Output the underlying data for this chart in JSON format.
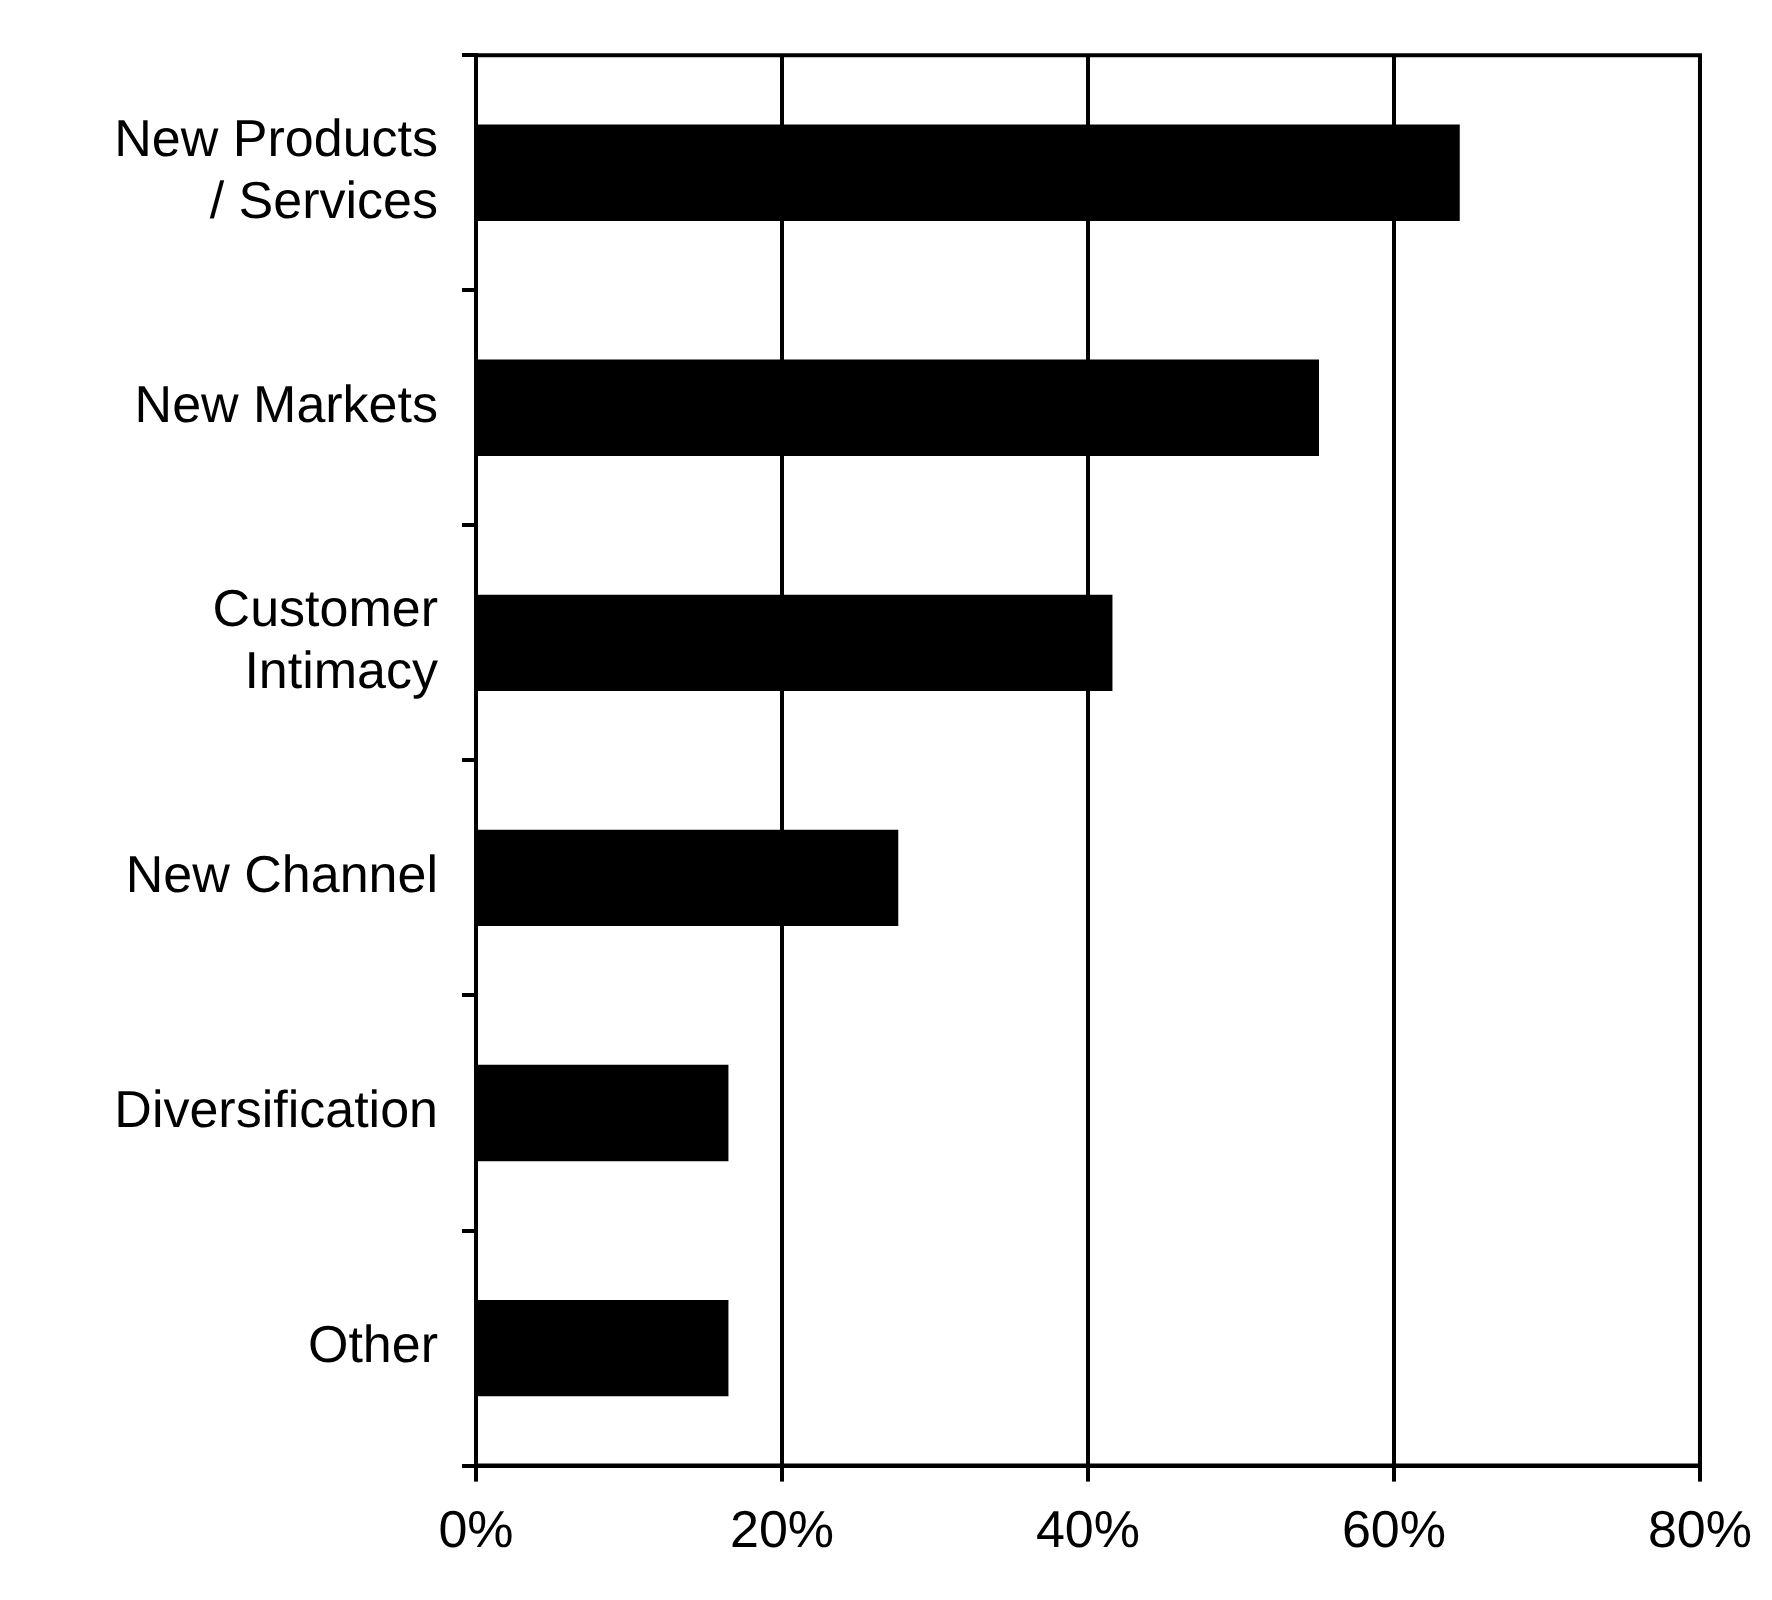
{
  "chart_data": {
    "type": "bar",
    "orientation": "horizontal",
    "categories": [
      "New Products\n/ Services",
      "New Markets",
      "Customer\nIntimacy",
      "New Channel",
      "Diversification",
      "Other"
    ],
    "values": [
      64.3,
      55.1,
      41.6,
      27.6,
      16.5,
      16.5
    ],
    "color": "#000000",
    "xlim": [
      0,
      80
    ],
    "xticks": [
      {
        "value": 0,
        "label": "0%"
      },
      {
        "value": 20,
        "label": "20%"
      },
      {
        "value": 40,
        "label": "40%"
      },
      {
        "value": 60,
        "label": "60%"
      },
      {
        "value": 80,
        "label": "80%"
      }
    ],
    "grid": "x"
  }
}
